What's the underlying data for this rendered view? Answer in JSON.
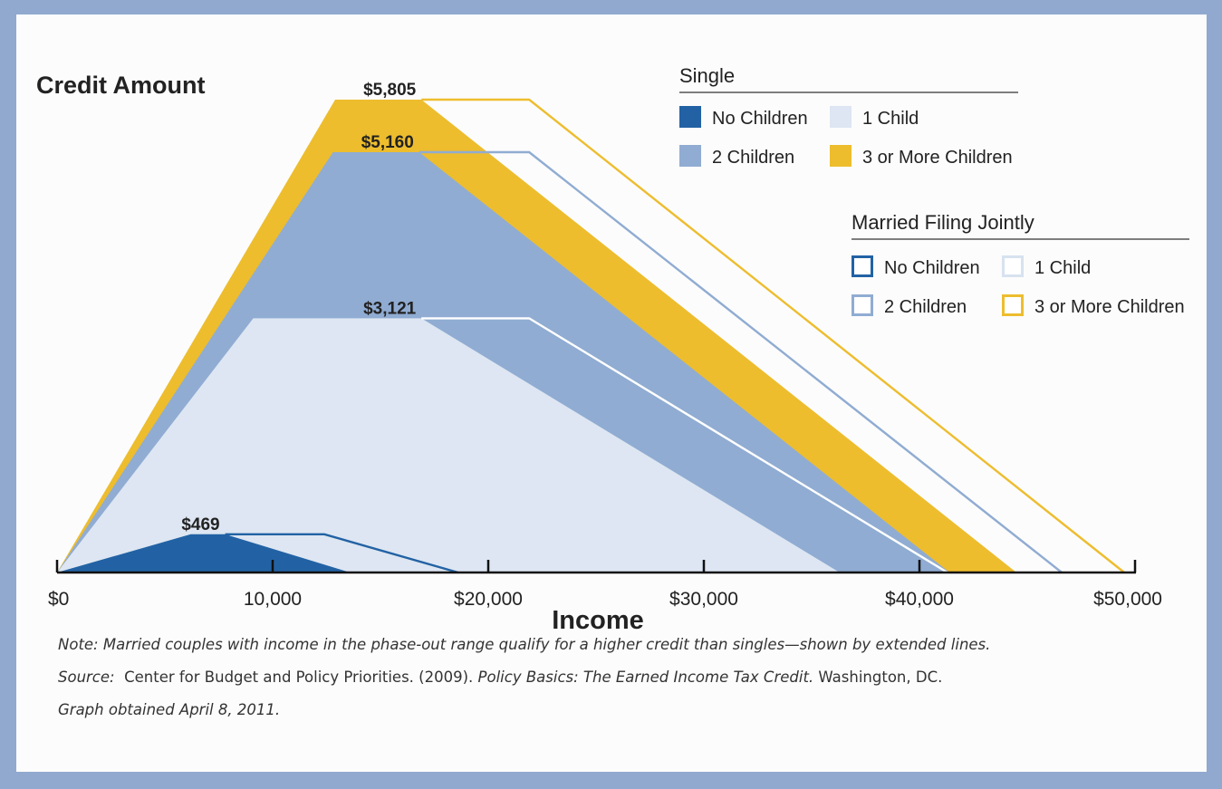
{
  "chart_data": {
    "type": "area",
    "ylabel": "Credit Amount",
    "xlabel": "Income",
    "xlim": [
      0,
      50000
    ],
    "x_ticks": [
      0,
      10000,
      20000,
      30000,
      40000,
      50000
    ],
    "x_tick_labels": [
      "$0",
      "10,000",
      "$20,000",
      "$30,000",
      "$40,000",
      "$50,000"
    ],
    "ylim": [
      0,
      5805
    ],
    "colors": {
      "no_children": "#2262a4",
      "one_child": "#dde6f2",
      "two_children": "#90acd2",
      "three_children": "#edbd2e"
    },
    "series": [
      {
        "key": "three_children",
        "max_label": "$5,805",
        "single": {
          "x": [
            0,
            12900,
            16900,
            44500
          ],
          "y": [
            0,
            5805,
            5805,
            0
          ]
        },
        "married": {
          "x": [
            16900,
            21900,
            49500
          ],
          "y": [
            5805,
            5805,
            0
          ]
        }
      },
      {
        "key": "two_children",
        "max_label": "$5,160",
        "single": {
          "x": [
            0,
            12800,
            16800,
            41400
          ],
          "y": [
            0,
            5160,
            5160,
            0
          ]
        },
        "married": {
          "x": [
            16800,
            21900,
            46600
          ],
          "y": [
            5160,
            5160,
            0
          ]
        }
      },
      {
        "key": "one_child",
        "max_label": "$3,121",
        "single": {
          "x": [
            0,
            9100,
            16900,
            36300
          ],
          "y": [
            0,
            3121,
            3121,
            0
          ]
        },
        "married": {
          "x": [
            16900,
            21900,
            41300
          ],
          "y": [
            3121,
            3121,
            0
          ]
        }
      },
      {
        "key": "no_children",
        "max_label": "$469",
        "single": {
          "x": [
            0,
            6200,
            7800,
            13600
          ],
          "y": [
            0,
            469,
            469,
            0
          ]
        },
        "married": {
          "x": [
            7800,
            12400,
            18600
          ],
          "y": [
            469,
            469,
            0
          ]
        }
      }
    ],
    "legend": [
      {
        "title": "Single",
        "style": "filled",
        "items": [
          {
            "label": "No Children",
            "key": "no_children"
          },
          {
            "label": "1 Child",
            "key": "one_child"
          },
          {
            "label": "2 Children",
            "key": "two_children"
          },
          {
            "label": "3 or More Children",
            "key": "three_children"
          }
        ]
      },
      {
        "title": "Married Filing Jointly",
        "style": "outline",
        "items": [
          {
            "label": "No Children",
            "key": "no_children"
          },
          {
            "label": "1 Child",
            "key": "one_child"
          },
          {
            "label": "2 Children",
            "key": "two_children"
          },
          {
            "label": "3 or More Children",
            "key": "three_children"
          }
        ]
      }
    ]
  },
  "notes": {
    "note": "Note: Married couples with income in the phase-out range qualify for a higher credit than singles—shown by extended lines.",
    "source_prefix": "Source:",
    "source_org": "Center for Budget and Policy Priorities. (2009).",
    "source_title": "Policy Basics: The Earned Income Tax Credit.",
    "source_place": "Washington, DC.",
    "obtained": "Graph obtained April 8, 2011."
  }
}
